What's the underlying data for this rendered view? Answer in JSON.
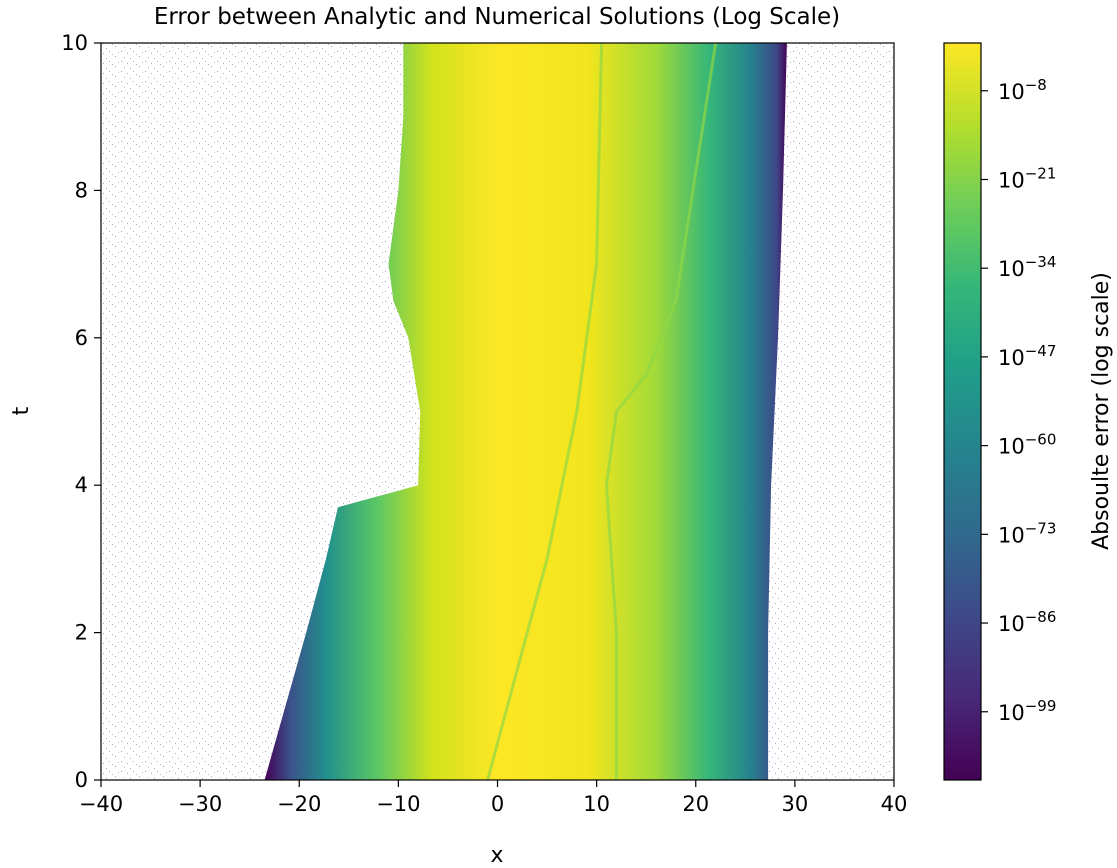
{
  "chart_data": {
    "type": "heatmap",
    "title": "Error between Analytic and Numerical Solutions (Log Scale)",
    "xlabel": "x",
    "ylabel": "t",
    "xlim": [
      -40,
      40
    ],
    "ylim": [
      0,
      10
    ],
    "x_ticks": [
      -40,
      -30,
      -20,
      -10,
      0,
      10,
      20,
      30,
      40
    ],
    "y_ticks": [
      0,
      2,
      4,
      6,
      8,
      10
    ],
    "colormap": "viridis",
    "colorbar": {
      "label": "Absoulte error (log scale)",
      "scale": "log",
      "ticks": [
        {
          "exp": -8,
          "label": "10^-8"
        },
        {
          "exp": -21,
          "label": "10^-21"
        },
        {
          "exp": -34,
          "label": "10^-34"
        },
        {
          "exp": -47,
          "label": "10^-47"
        },
        {
          "exp": -60,
          "label": "10^-60"
        },
        {
          "exp": -73,
          "label": "10^-73"
        },
        {
          "exp": -86,
          "label": "10^-86"
        },
        {
          "exp": -99,
          "label": "10^-99"
        }
      ],
      "range_exp": [
        -109,
        -1
      ]
    },
    "nonzero_region_boundary": {
      "left_edge": [
        {
          "t": 0,
          "x": -23.5
        },
        {
          "t": 1,
          "x": -21.4
        },
        {
          "t": 2,
          "x": -19.3
        },
        {
          "t": 3,
          "x": -17.3
        },
        {
          "t": 3.7,
          "x": -16.1
        },
        {
          "t": 4,
          "x": -8
        },
        {
          "t": 5,
          "x": -7.8
        },
        {
          "t": 6,
          "x": -9
        },
        {
          "t": 6.5,
          "x": -10.5
        },
        {
          "t": 7,
          "x": -11
        },
        {
          "t": 8,
          "x": -10
        },
        {
          "t": 9,
          "x": -9.5
        },
        {
          "t": 10,
          "x": -9.5
        }
      ],
      "right_edge": [
        {
          "t": 0,
          "x": 27.3
        },
        {
          "t": 2,
          "x": 27.3
        },
        {
          "t": 4,
          "x": 27.6
        },
        {
          "t": 6,
          "x": 28.3
        },
        {
          "t": 8,
          "x": 28.8
        },
        {
          "t": 10,
          "x": 29.2
        }
      ]
    },
    "colors": {
      "viridis_stops": [
        "#440154",
        "#482878",
        "#3e4989",
        "#31688e",
        "#26828e",
        "#1f9e89",
        "#35b779",
        "#6ece58",
        "#b5de2b",
        "#fde725"
      ],
      "background_speckle": "#6a3d9a"
    }
  }
}
